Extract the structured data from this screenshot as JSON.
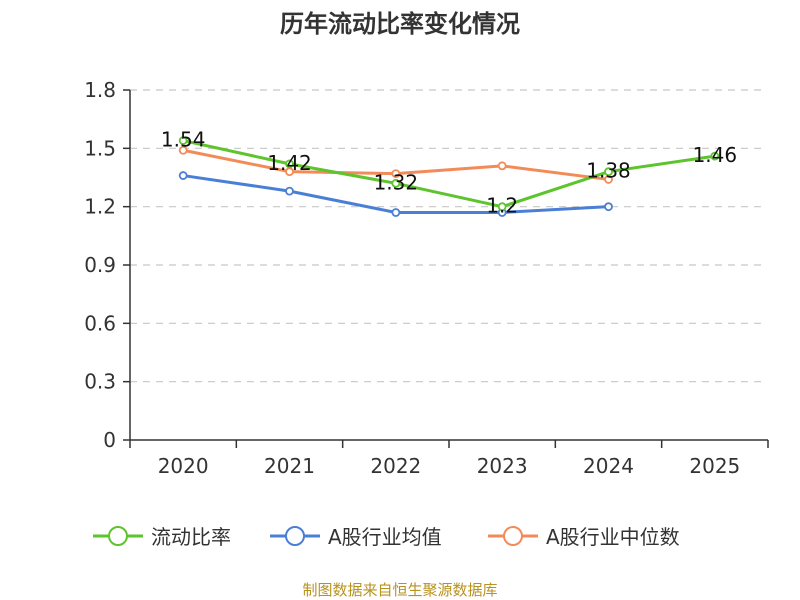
{
  "chart_data": {
    "type": "line",
    "title": "历年流动比率变化情况",
    "categories": [
      "2020",
      "2021",
      "2022",
      "2023",
      "2024",
      "2025"
    ],
    "ylim": [
      0,
      1.8
    ],
    "yticks": [
      "0",
      "0.3",
      "0.6",
      "0.9",
      "1.2",
      "1.5",
      "1.8"
    ],
    "grid": true,
    "legend_position": "bottom",
    "series": [
      {
        "name": "流动比率",
        "color": "#5ec42d",
        "values": [
          1.54,
          1.42,
          1.32,
          1.2,
          1.38,
          1.46
        ],
        "labels": [
          "1.54",
          "1.42",
          "1.32",
          "1.2",
          "1.38",
          "1.46"
        ]
      },
      {
        "name": "A股行业均值",
        "color": "#4a7fd6",
        "values": [
          1.36,
          1.28,
          1.17,
          1.17,
          1.2,
          null
        ]
      },
      {
        "name": "A股行业中位数",
        "color": "#f38b58",
        "values": [
          1.49,
          1.38,
          1.37,
          1.41,
          1.34,
          null
        ]
      }
    ]
  },
  "source_text": "制图数据来自恒生聚源数据库"
}
